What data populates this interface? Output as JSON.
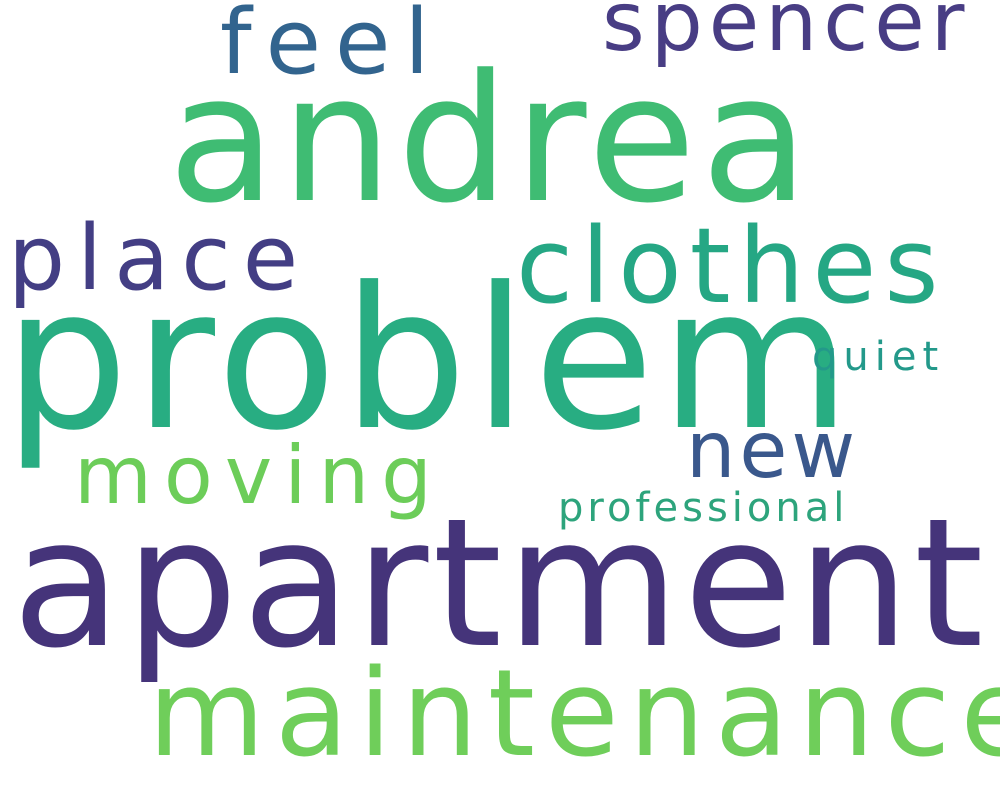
{
  "background": "#ffffff",
  "words": [
    {
      "id": "apartment",
      "text": "apartment",
      "color": "#45347a"
    },
    {
      "id": "problem",
      "text": "problem",
      "color": "#28ad82"
    },
    {
      "id": "andrea",
      "text": "andrea",
      "color": "#3fbc73"
    },
    {
      "id": "maintenance",
      "text": "maintenance",
      "color": "#6fce5a"
    },
    {
      "id": "clothes",
      "text": "clothes",
      "color": "#25a784"
    },
    {
      "id": "place",
      "text": "place",
      "color": "#433e84"
    },
    {
      "id": "spencer",
      "text": "spencer",
      "color": "#483d84"
    },
    {
      "id": "feel",
      "text": "feel",
      "color": "#32648e"
    },
    {
      "id": "new",
      "text": "new",
      "color": "#3a588c"
    },
    {
      "id": "moving",
      "text": "moving",
      "color": "#6ccd59"
    },
    {
      "id": "quiet",
      "text": "quiet",
      "color": "#23998a"
    },
    {
      "id": "professional",
      "text": "professional",
      "color": "#2da47c"
    }
  ]
}
